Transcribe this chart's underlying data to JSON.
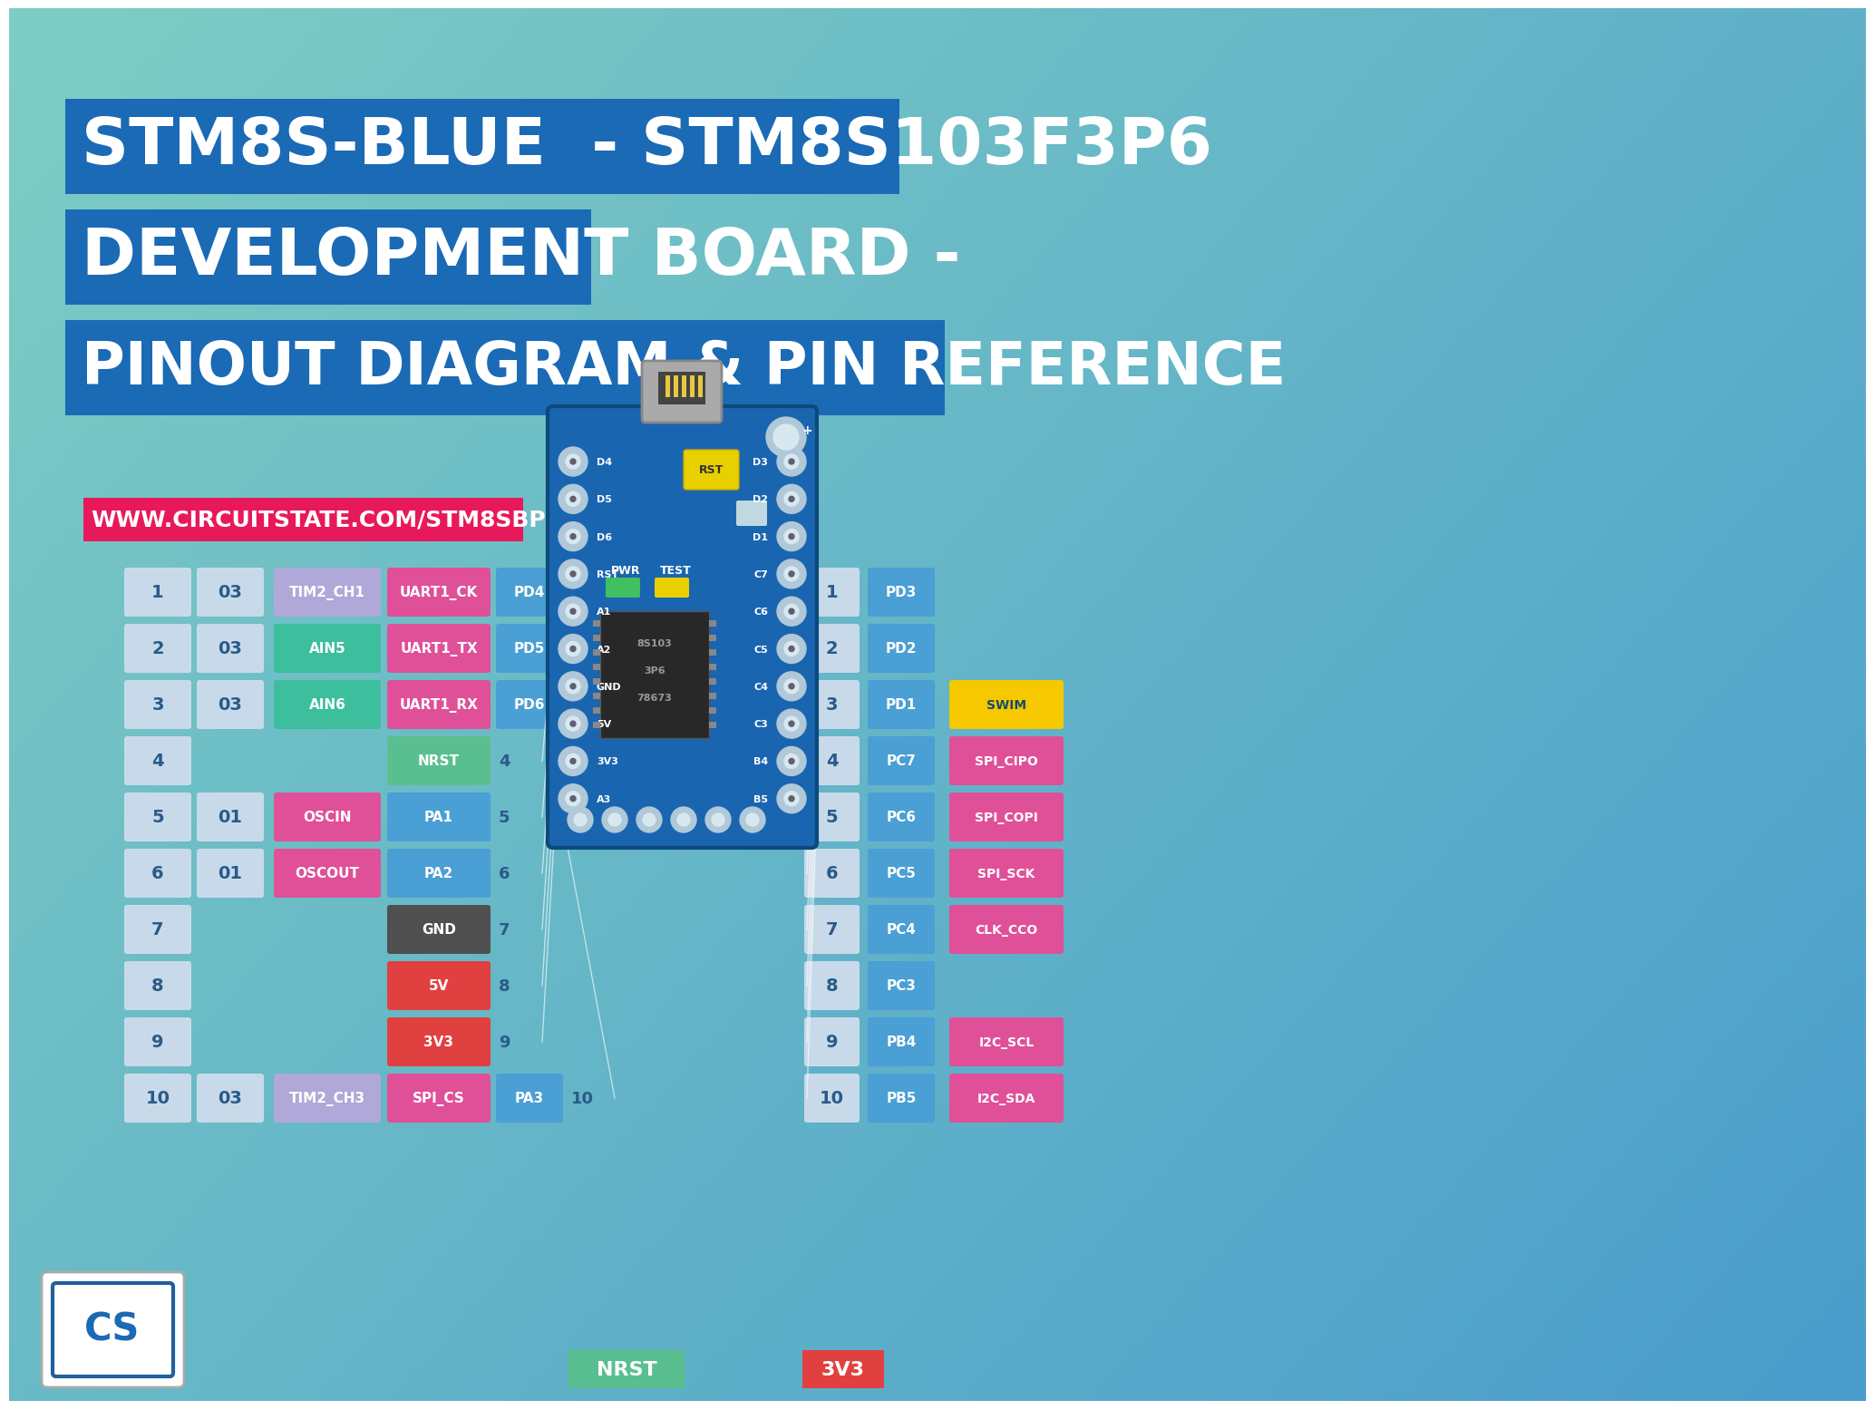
{
  "title_line1": "STM8S-BLUE  - STM8S103F3P6",
  "title_line2": "DEVELOPMENT BOARD -",
  "title_line3": "PINOUT DIAGRAM & PIN REFERENCE",
  "website": "WWW.CIRCUITSTATE.COM/STM8SBPINS",
  "title_bg": "#1a6ab5",
  "title_text": "#ffffff",
  "website_bg": "#e8195a",
  "pin_number_bg": "#c8daea",
  "pin_number_text": "#2a5a8a",
  "port_bg": "#c8daea",
  "port_text": "#2a5a8a",
  "timer_bg": "#b0a8d8",
  "analog_bg": "#3dbf9e",
  "uart_bg": "#e05098",
  "port_pin_bg": "#4a9fd4",
  "nrst_bg": "#5abf90",
  "pa_bg": "#4a9fd4",
  "osc_bg": "#e05098",
  "gnd_bg": "#505050",
  "vcc_bg": "#e04040",
  "v33_bg": "#e04040",
  "spi_bg": "#e05098",
  "swim_bg": "#f5c800",
  "swim_text": "#1a4a6e",
  "clk_bg": "#e05098",
  "i2c_bg": "#e05098",
  "board_bg": "#1a65b0",
  "board_edge": "#0d4a7a",
  "pad_color": "#6090c0",
  "hole_color": "#c8d8e8",
  "left_pins": [
    {
      "num": "1",
      "port": "03",
      "func1": "TIM2_CH1",
      "func1_color": "#b0a8d8",
      "func2": "UART1_CK",
      "func2_color": "#e05098",
      "pin": "PD4"
    },
    {
      "num": "2",
      "port": "03",
      "func1": "AIN5",
      "func1_color": "#3dbf9e",
      "func2": "UART1_TX",
      "func2_color": "#e05098",
      "pin": "PD5"
    },
    {
      "num": "3",
      "port": "03",
      "func1": "AIN6",
      "func1_color": "#3dbf9e",
      "func2": "UART1_RX",
      "func2_color": "#e05098",
      "pin": "PD6"
    },
    {
      "num": "4",
      "port": "",
      "func1": "",
      "func1_color": "",
      "func2": "NRST",
      "func2_color": "#5abf90",
      "pin": ""
    },
    {
      "num": "5",
      "port": "01",
      "func1": "OSCIN",
      "func1_color": "#e05098",
      "func2": "PA1",
      "func2_color": "#4a9fd4",
      "pin": ""
    },
    {
      "num": "6",
      "port": "01",
      "func1": "OSCOUT",
      "func1_color": "#e05098",
      "func2": "PA2",
      "func2_color": "#4a9fd4",
      "pin": ""
    },
    {
      "num": "7",
      "port": "",
      "func1": "",
      "func1_color": "",
      "func2": "GND",
      "func2_color": "#505050",
      "pin": ""
    },
    {
      "num": "8",
      "port": "",
      "func1": "",
      "func1_color": "",
      "func2": "5V",
      "func2_color": "#e04040",
      "pin": ""
    },
    {
      "num": "9",
      "port": "",
      "func1": "",
      "func1_color": "",
      "func2": "3V3",
      "func2_color": "#e04040",
      "pin": ""
    },
    {
      "num": "10",
      "port": "03",
      "func1": "TIM2_CH3",
      "func1_color": "#b0a8d8",
      "func2": "SPI_CS",
      "func2_color": "#e05098",
      "pin": "PA3"
    }
  ],
  "right_pins": [
    {
      "num": "1",
      "port": "PD3",
      "func1": "",
      "func1_color": ""
    },
    {
      "num": "2",
      "port": "PD2",
      "func1": "",
      "func1_color": ""
    },
    {
      "num": "3",
      "port": "PD1",
      "func1": "SWIM",
      "func1_color": "#f5c800"
    },
    {
      "num": "4",
      "port": "PC7",
      "func1": "SPI_CIPO",
      "func1_color": "#e05098"
    },
    {
      "num": "5",
      "port": "PC6",
      "func1": "SPI_COPI",
      "func1_color": "#e05098"
    },
    {
      "num": "6",
      "port": "PC5",
      "func1": "SPI_SCK",
      "func1_color": "#e05098"
    },
    {
      "num": "7",
      "port": "PC4",
      "func1": "CLK_CCO",
      "func1_color": "#e05098"
    },
    {
      "num": "8",
      "port": "PC3",
      "func1": "",
      "func1_color": ""
    },
    {
      "num": "9",
      "port": "PB4",
      "func1": "I2C_SCL",
      "func1_color": "#e05098"
    },
    {
      "num": "10",
      "port": "PB5",
      "func1": "I2C_SDA",
      "func1_color": "#e05098"
    }
  ],
  "board_left_labels": [
    "D4",
    "D5",
    "D6",
    "RST",
    "A1",
    "A2",
    "GND",
    "5V",
    "3V3",
    "A3"
  ],
  "board_right_labels": [
    "D3",
    "D2",
    "D1",
    "C7",
    "C6",
    "C5",
    "C4",
    "C3",
    "B4",
    "B5"
  ]
}
